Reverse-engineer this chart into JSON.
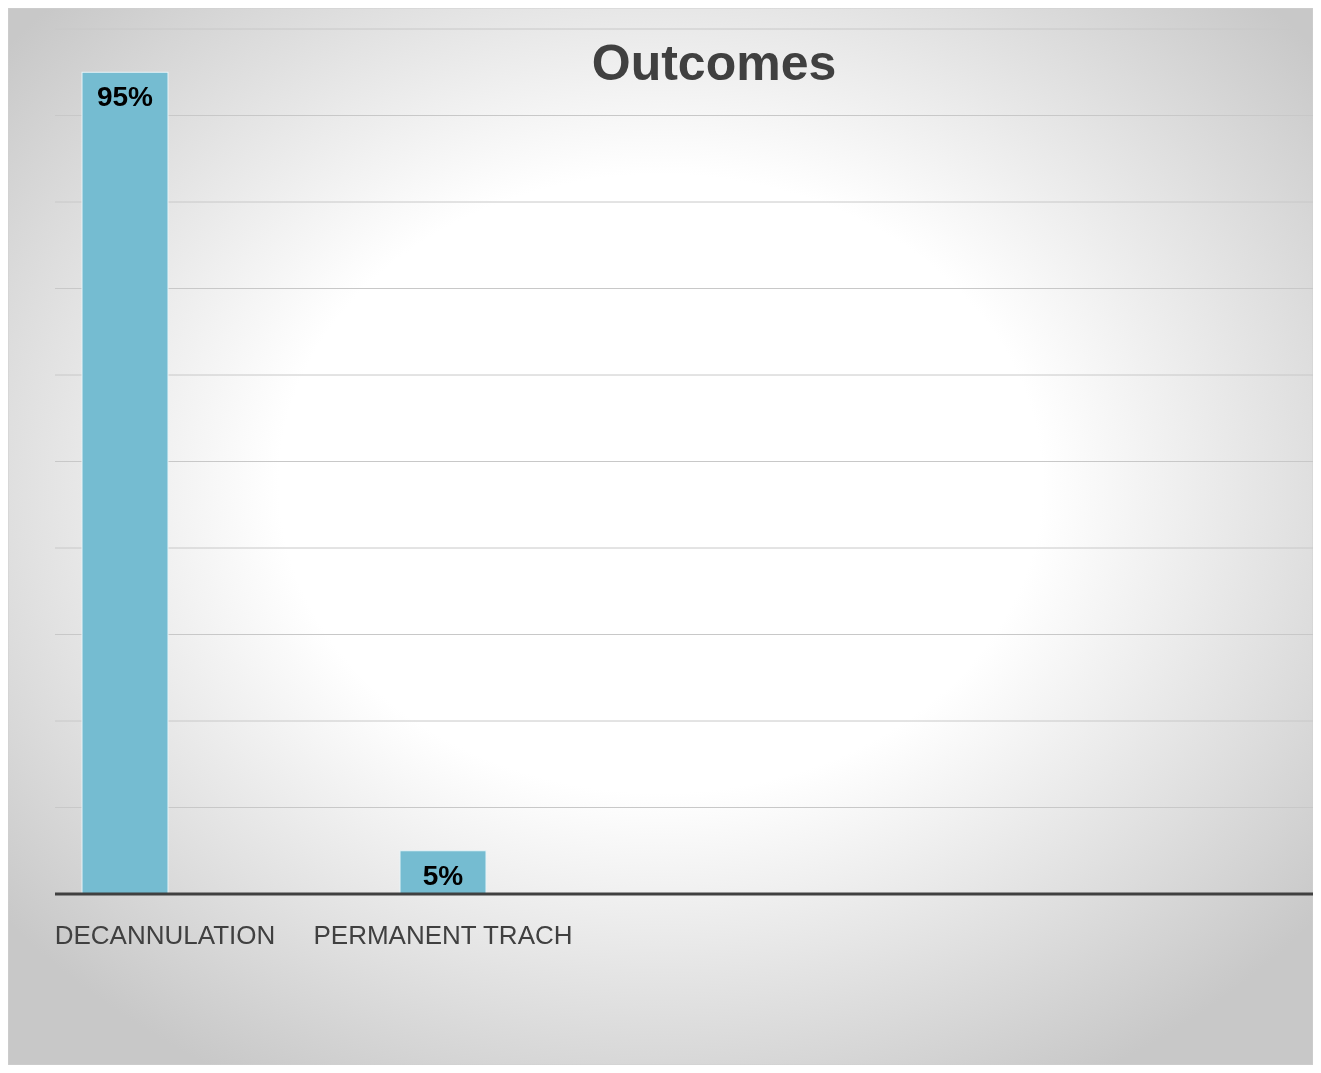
{
  "chart_data": {
    "type": "bar",
    "title": "Outcomes",
    "categories": [
      "DECANNULATION",
      "PERMANENT TRACH"
    ],
    "values": [
      95,
      5
    ],
    "color": "#75bcd1",
    "ylim": [
      0,
      100
    ],
    "yticks": [
      {
        "value": 0,
        "label": null
      },
      {
        "value": 10,
        "label": null
      },
      {
        "value": 20,
        "label": null
      },
      {
        "value": 30,
        "label": null
      },
      {
        "value": 40,
        "label": null
      },
      {
        "value": 50,
        "label": null
      },
      {
        "value": 60,
        "label": null
      },
      {
        "value": 70,
        "label": null
      },
      {
        "value": 80,
        "label": null
      },
      {
        "value": 90,
        "label": null
      },
      {
        "value": 100,
        "label": null
      }
    ],
    "value_labels": [
      "95%",
      "5%"
    ],
    "grid": "y",
    "tick_labels": "x"
  }
}
